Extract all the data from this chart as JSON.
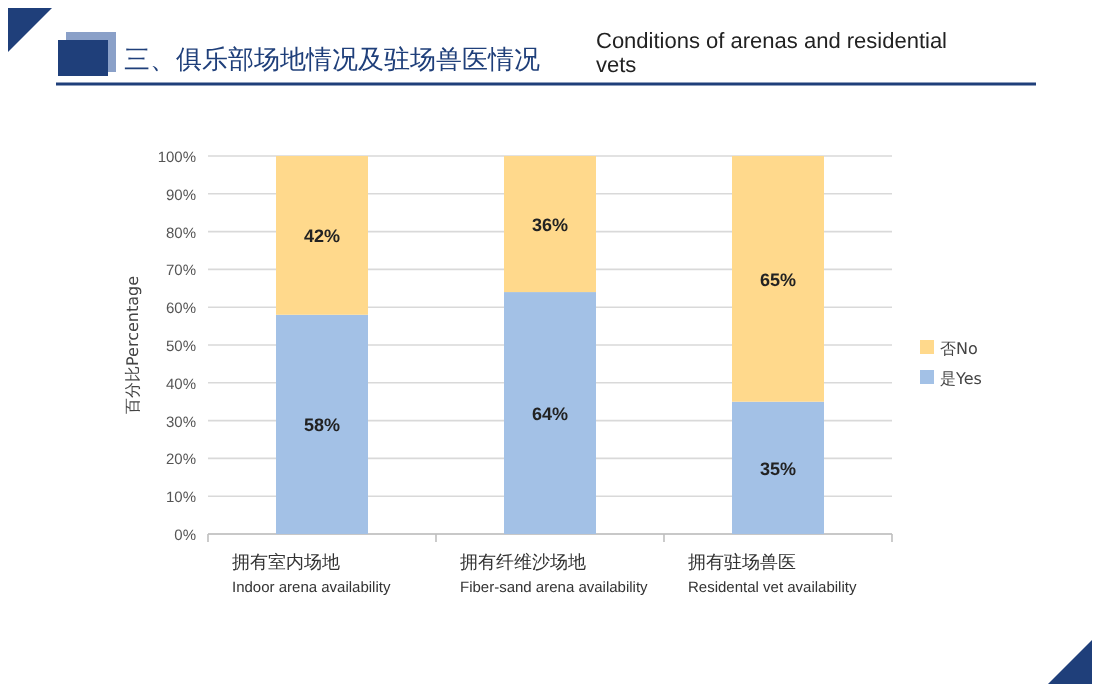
{
  "chart_data": {
    "type": "bar",
    "stacked": true,
    "title": "三、俱乐部场地情况及驻场兽医情况",
    "subtitle": "Conditions of arenas and residential vets",
    "ylabel": "百分比Percentage",
    "categories": [
      "拥有室内场地\nIndoor arena availability",
      "拥有纤维沙场地\nFiber-sand arena availability",
      "拥有驻场兽医\nResidental  vet availability"
    ],
    "series": [
      {
        "name": "是Yes",
        "color": "#a3c1e6",
        "values": [
          58,
          64,
          35
        ],
        "value_labels": [
          "58%",
          "64%",
          "35%"
        ]
      },
      {
        "name": "否No",
        "color": "#ffd98c",
        "values": [
          42,
          36,
          65
        ],
        "value_labels": [
          "42%",
          "36%",
          "65%"
        ]
      }
    ],
    "ylim": [
      0,
      100
    ],
    "yticks": [
      {
        "value": 0,
        "label": "0%"
      },
      {
        "value": 10,
        "label": "10%"
      },
      {
        "value": 20,
        "label": "20%"
      },
      {
        "value": 30,
        "label": "30%"
      },
      {
        "value": 40,
        "label": "40%"
      },
      {
        "value": 50,
        "label": "50%"
      },
      {
        "value": 60,
        "label": "60%"
      },
      {
        "value": 70,
        "label": "70%"
      },
      {
        "value": 80,
        "label": "80%"
      },
      {
        "value": 90,
        "label": "90%"
      },
      {
        "value": 100,
        "label": "100%"
      }
    ],
    "grid": "y",
    "legend": "right"
  }
}
